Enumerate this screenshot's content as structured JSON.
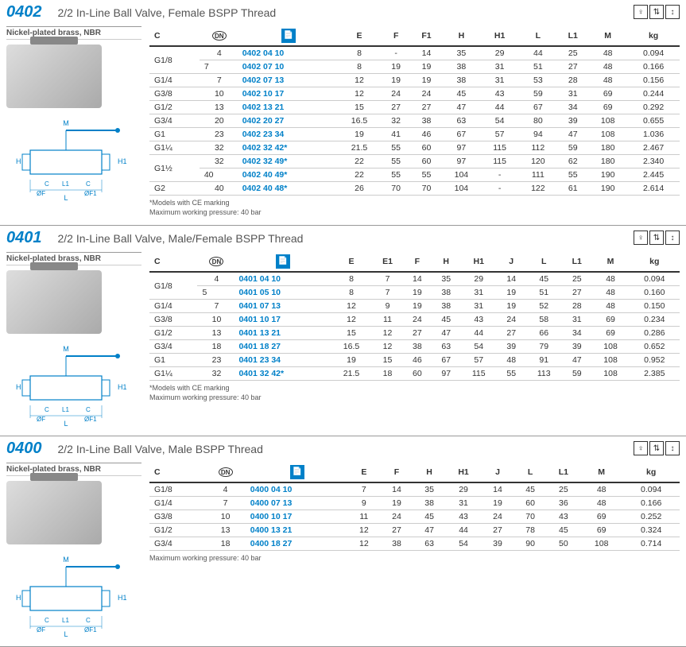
{
  "sections": [
    {
      "id": "0402",
      "partNumber": "0402",
      "title": "2/2 In-Line Ball Valve, Female BSPP Thread",
      "material": "Nickel-plated brass, NBR",
      "columns": [
        "C",
        "DN",
        "",
        "E",
        "F",
        "F1",
        "H",
        "H1",
        "L",
        "L1",
        "M",
        "kg"
      ],
      "groups": [
        {
          "c": "G1/8",
          "rows": [
            [
              "4",
              "0402 04 10",
              "8",
              "-",
              "14",
              "35",
              "29",
              "44",
              "25",
              "48",
              "0.094"
            ],
            [
              "7",
              "0402 07 10",
              "8",
              "19",
              "19",
              "38",
              "31",
              "51",
              "27",
              "48",
              "0.166"
            ]
          ]
        },
        {
          "c": "G1/4",
          "rows": [
            [
              "7",
              "0402 07 13",
              "12",
              "19",
              "19",
              "38",
              "31",
              "53",
              "28",
              "48",
              "0.156"
            ]
          ]
        },
        {
          "c": "G3/8",
          "rows": [
            [
              "10",
              "0402 10 17",
              "12",
              "24",
              "24",
              "45",
              "43",
              "59",
              "31",
              "69",
              "0.244"
            ]
          ]
        },
        {
          "c": "G1/2",
          "rows": [
            [
              "13",
              "0402 13 21",
              "15",
              "27",
              "27",
              "47",
              "44",
              "67",
              "34",
              "69",
              "0.292"
            ]
          ]
        },
        {
          "c": "G3/4",
          "rows": [
            [
              "20",
              "0402 20 27",
              "16.5",
              "32",
              "38",
              "63",
              "54",
              "80",
              "39",
              "108",
              "0.655"
            ]
          ]
        },
        {
          "c": "G1",
          "rows": [
            [
              "23",
              "0402 23 34",
              "19",
              "41",
              "46",
              "67",
              "57",
              "94",
              "47",
              "108",
              "1.036"
            ]
          ]
        },
        {
          "c": "G1¼",
          "rows": [
            [
              "32",
              "0402 32 42*",
              "21.5",
              "55",
              "60",
              "97",
              "115",
              "112",
              "59",
              "180",
              "2.467"
            ]
          ]
        },
        {
          "c": "G1½",
          "rows": [
            [
              "32",
              "0402 32 49*",
              "22",
              "55",
              "60",
              "97",
              "115",
              "120",
              "62",
              "180",
              "2.340"
            ],
            [
              "40",
              "0402 40 49*",
              "22",
              "55",
              "55",
              "104",
              "-",
              "111",
              "55",
              "190",
              "2.445"
            ]
          ]
        },
        {
          "c": "G2",
          "rows": [
            [
              "40",
              "0402 40 48*",
              "26",
              "70",
              "70",
              "104",
              "-",
              "122",
              "61",
              "190",
              "2.614"
            ]
          ]
        }
      ],
      "footnotes": [
        "*Models with CE marking",
        "Maximum working pressure: 40 bar"
      ]
    },
    {
      "id": "0401",
      "partNumber": "0401",
      "title": "2/2 In-Line Ball Valve, Male/Female  BSPP Thread",
      "material": "Nickel-plated brass, NBR",
      "columns": [
        "C",
        "DN",
        "",
        "E",
        "E1",
        "F",
        "H",
        "H1",
        "J",
        "L",
        "L1",
        "M",
        "kg"
      ],
      "groups": [
        {
          "c": "G1/8",
          "rows": [
            [
              "4",
              "0401 04 10",
              "8",
              "7",
              "14",
              "35",
              "29",
              "14",
              "45",
              "25",
              "48",
              "0.094"
            ],
            [
              "5",
              "0401 05 10",
              "8",
              "7",
              "19",
              "38",
              "31",
              "19",
              "51",
              "27",
              "48",
              "0.160"
            ]
          ]
        },
        {
          "c": "G1/4",
          "rows": [
            [
              "7",
              "0401 07 13",
              "12",
              "9",
              "19",
              "38",
              "31",
              "19",
              "52",
              "28",
              "48",
              "0.150"
            ]
          ]
        },
        {
          "c": "G3/8",
          "rows": [
            [
              "10",
              "0401 10 17",
              "12",
              "11",
              "24",
              "45",
              "43",
              "24",
              "58",
              "31",
              "69",
              "0.234"
            ]
          ]
        },
        {
          "c": "G1/2",
          "rows": [
            [
              "13",
              "0401 13 21",
              "15",
              "12",
              "27",
              "47",
              "44",
              "27",
              "66",
              "34",
              "69",
              "0.286"
            ]
          ]
        },
        {
          "c": "G3/4",
          "rows": [
            [
              "18",
              "0401 18 27",
              "16.5",
              "12",
              "38",
              "63",
              "54",
              "39",
              "79",
              "39",
              "108",
              "0.652"
            ]
          ]
        },
        {
          "c": "G1",
          "rows": [
            [
              "23",
              "0401 23 34",
              "19",
              "15",
              "46",
              "67",
              "57",
              "48",
              "91",
              "47",
              "108",
              "0.952"
            ]
          ]
        },
        {
          "c": "G1¼",
          "rows": [
            [
              "32",
              "0401 32 42*",
              "21.5",
              "18",
              "60",
              "97",
              "115",
              "55",
              "113",
              "59",
              "108",
              "2.385"
            ]
          ]
        }
      ],
      "footnotes": [
        "*Models with CE marking",
        "Maximum working pressure: 40 bar"
      ]
    },
    {
      "id": "0400",
      "partNumber": "0400",
      "title": "2/2 In-Line Ball Valve, Male BSPP Thread",
      "material": "Nickel-plated brass, NBR",
      "columns": [
        "C",
        "DN",
        "",
        "E",
        "F",
        "H",
        "H1",
        "J",
        "L",
        "L1",
        "M",
        "kg"
      ],
      "groups": [
        {
          "c": "G1/8",
          "rows": [
            [
              "4",
              "0400 04 10",
              "7",
              "14",
              "35",
              "29",
              "14",
              "45",
              "25",
              "48",
              "0.094"
            ]
          ]
        },
        {
          "c": "G1/4",
          "rows": [
            [
              "7",
              "0400 07 13",
              "9",
              "19",
              "38",
              "31",
              "19",
              "60",
              "36",
              "48",
              "0.166"
            ]
          ]
        },
        {
          "c": "G3/8",
          "rows": [
            [
              "10",
              "0400 10 17",
              "11",
              "24",
              "45",
              "43",
              "24",
              "70",
              "43",
              "69",
              "0.252"
            ]
          ]
        },
        {
          "c": "G1/2",
          "rows": [
            [
              "13",
              "0400 13 21",
              "12",
              "27",
              "47",
              "44",
              "27",
              "78",
              "45",
              "69",
              "0.324"
            ]
          ]
        },
        {
          "c": "G3/4",
          "rows": [
            [
              "18",
              "0400 18 27",
              "12",
              "38",
              "63",
              "54",
              "39",
              "90",
              "50",
              "108",
              "0.714"
            ]
          ]
        }
      ],
      "footnotes": [
        "Maximum working pressure: 40 bar"
      ]
    }
  ],
  "labels": {
    "dnHeader": "DN"
  },
  "colors": {
    "accent": "#0080c8",
    "text": "#333333",
    "rule": "#999999"
  }
}
